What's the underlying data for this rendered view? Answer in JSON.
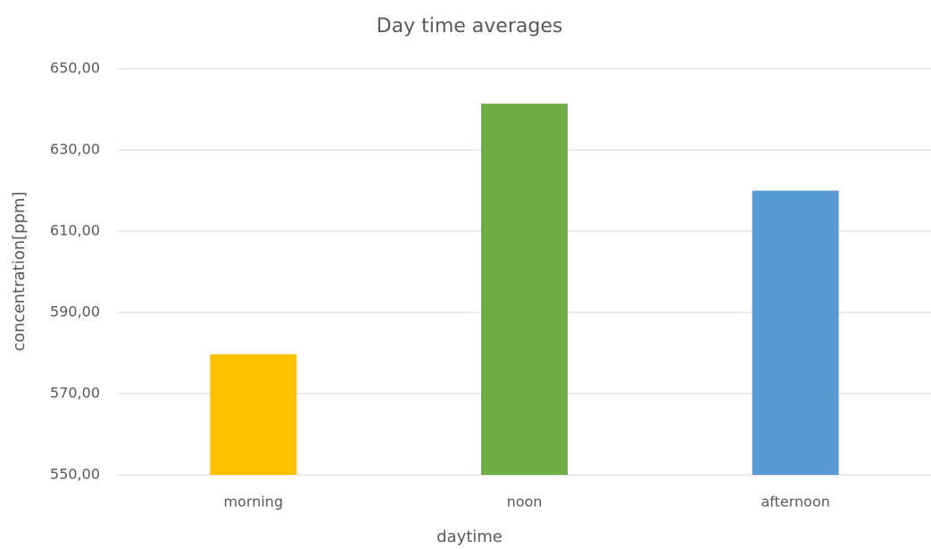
{
  "chart_data": {
    "type": "bar",
    "title": "Day time averages",
    "x_label": "daytime",
    "y_label": "concentration[ppm]",
    "categories": [
      "morning",
      "noon",
      "afternoon"
    ],
    "values": [
      579.7,
      641.4,
      620
    ],
    "colors": [
      "#ffc000",
      "#70ad47",
      "#5b9bd5"
    ],
    "ylim": [
      550,
      650
    ],
    "yticks": [
      {
        "value": 550,
        "label": "550,00"
      },
      {
        "value": 570,
        "label": "570,00"
      },
      {
        "value": 590,
        "label": "590,00"
      },
      {
        "value": 610,
        "label": "610,00"
      },
      {
        "value": 630,
        "label": "630,00"
      },
      {
        "value": 650,
        "label": "650,00"
      }
    ],
    "grid": true
  }
}
